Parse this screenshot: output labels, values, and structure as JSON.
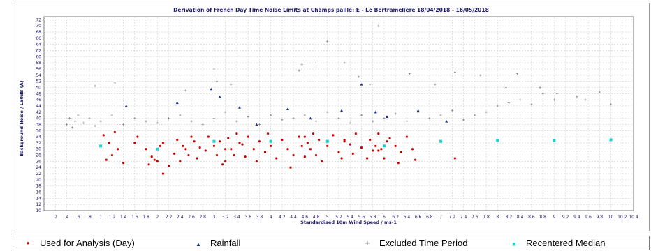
{
  "colors": {
    "used": "#c80000",
    "rainfall": "#1e2f8c",
    "excluded": "#8c8c8c",
    "median": "#19d2d2",
    "title": "#1c1c6e",
    "grid": "#cfcfcf"
  },
  "chart_data": {
    "type": "scatter",
    "title": "Derivation of French Day Time Noise Limits at Champs paille: E - Le Bertramelière 18/04/2018 - 16/05/2018",
    "xlabel": "Standardised 10m Wind Speed / ms-1",
    "ylabel": "Background Noise / L50dB (A)",
    "xlim": [
      0,
      10.4
    ],
    "ylim": [
      10,
      73
    ],
    "x_ticks": [
      ".2",
      ".4",
      ".6",
      ".8",
      "1",
      "1.2",
      "1.4",
      "1.6",
      "1.8",
      "2",
      "2.2",
      "2.4",
      "2.6",
      "2.8",
      "3",
      "3.2",
      "3.4",
      "3.6",
      "3.8",
      "4",
      "4.2",
      "4.4",
      "4.6",
      "4.8",
      "5",
      "5.2",
      "5.4",
      "5.6",
      "5.8",
      "6",
      "6.2",
      "6.4",
      "6.6",
      "6.8",
      "7",
      "7.2",
      "7.4",
      "7.6",
      "7.8",
      "8",
      "8.2",
      "8.4",
      "8.6",
      "8.8",
      "9",
      "9.2",
      "9.4",
      "9.6",
      "9.8",
      "10",
      "10.2",
      "10.4"
    ],
    "y_ticks": [
      "10",
      "12",
      "14",
      "16",
      "18",
      "20",
      "22",
      "24",
      "26",
      "28",
      "30",
      "32",
      "34",
      "36",
      "38",
      "40",
      "42",
      "44",
      "46",
      "48",
      "50",
      "52",
      "54",
      "56",
      "58",
      "60",
      "62",
      "64",
      "66",
      "68",
      "70",
      "72"
    ],
    "grid": true,
    "legend_position": "bottom",
    "series": [
      {
        "name": "Used for Analysis (Day)",
        "marker": "dot",
        "x": [
          1.05,
          1.1,
          1.15,
          1.2,
          1.25,
          1.3,
          1.4,
          1.6,
          1.65,
          1.8,
          1.85,
          1.9,
          2.0,
          2.05,
          2.1,
          2.2,
          2.3,
          2.35,
          2.4,
          2.45,
          2.5,
          2.6,
          2.65,
          2.7,
          2.75,
          2.85,
          2.9,
          3.0,
          3.05,
          3.1,
          3.15,
          3.2,
          3.25,
          3.3,
          3.35,
          3.4,
          3.5,
          3.55,
          3.6,
          3.7,
          3.75,
          3.8,
          3.9,
          3.95,
          4.0,
          4.1,
          4.2,
          4.3,
          4.35,
          4.4,
          4.5,
          4.55,
          4.6,
          4.65,
          4.7,
          4.75,
          4.8,
          4.85,
          4.9,
          5.0,
          5.1,
          5.2,
          5.25,
          5.3,
          5.4,
          5.45,
          5.5,
          5.6,
          5.7,
          5.75,
          5.8,
          5.85,
          5.9,
          5.95,
          6.0,
          6.05,
          6.1,
          6.2,
          6.25,
          6.4,
          6.5,
          6.55,
          7.25,
          2.1,
          3.2,
          4.6,
          5.3,
          5.9,
          6.3,
          1.95,
          2.55,
          3.45
        ],
        "y": [
          34.5,
          26.5,
          32,
          28,
          35.5,
          30,
          25.5,
          32,
          34,
          30,
          25,
          27.5,
          26,
          31,
          32,
          24.5,
          28.5,
          33,
          26,
          31,
          30,
          34,
          32.5,
          27,
          30.5,
          29.5,
          34,
          31,
          28,
          32.5,
          25,
          26,
          33.5,
          30,
          28,
          35,
          31.5,
          27.5,
          34,
          30,
          26,
          32.5,
          29,
          35,
          31,
          27,
          33,
          30,
          24,
          28,
          34,
          31,
          27.5,
          32,
          30,
          35,
          28,
          33,
          26,
          31,
          34.5,
          29,
          27,
          33,
          31.5,
          28.5,
          35,
          30.5,
          27,
          33,
          29.5,
          31,
          35,
          30,
          27,
          32.5,
          33.5,
          31,
          25.5,
          34,
          30,
          26.5,
          27,
          22,
          30,
          34,
          32.5,
          29.5,
          29,
          26.5,
          28,
          32
        ]
      },
      {
        "name": "Rainfall",
        "marker": "triangle",
        "x": [
          1.45,
          2.35,
          2.95,
          3.1,
          3.45,
          3.75,
          4.3,
          4.7,
          5.25,
          5.6,
          5.85,
          6.05,
          6.6,
          7.1
        ],
        "y": [
          44,
          45,
          49.5,
          47,
          43.5,
          38,
          43,
          40,
          42.5,
          51,
          42,
          40.5,
          42.5,
          39
        ],
        "name_note": ""
      },
      {
        "name": "Excluded Time Period",
        "marker": "plus",
        "x": [
          0.4,
          0.45,
          0.5,
          0.55,
          0.6,
          0.7,
          0.8,
          0.9,
          1.0,
          1.2,
          1.4,
          1.6,
          1.8,
          2.0,
          2.2,
          2.4,
          2.6,
          2.8,
          3.0,
          3.2,
          3.4,
          3.6,
          3.8,
          4.0,
          4.2,
          4.4,
          4.6,
          4.8,
          5.0,
          5.2,
          5.4,
          5.6,
          5.8,
          6.0,
          6.2,
          6.4,
          6.6,
          6.8,
          7.0,
          7.2,
          7.4,
          7.6,
          7.8,
          8.0,
          8.2,
          8.4,
          8.6,
          8.8,
          9.0,
          9.4,
          9.8,
          10.0,
          3.0,
          4.5,
          5.0,
          5.3,
          5.9,
          3.05,
          4.8,
          5.75,
          6.45,
          0.9,
          1.25,
          2.5,
          3.3,
          4.55,
          5.55,
          6.9,
          7.25,
          7.7,
          8.15,
          8.35,
          8.75,
          9.05,
          9.55
        ],
        "y": [
          38,
          40,
          37,
          39,
          41,
          38.5,
          40,
          37.5,
          39,
          41,
          38,
          40,
          39,
          38.5,
          40,
          41,
          39,
          38,
          40,
          42,
          39,
          40.5,
          38,
          41,
          39.5,
          40,
          41,
          39,
          42,
          40,
          38.5,
          41,
          39,
          40,
          41.5,
          39,
          42,
          40,
          41,
          42.5,
          39.5,
          41,
          42,
          44,
          45,
          46,
          44.5,
          48,
          46,
          47,
          48.5,
          44.5,
          56,
          55.5,
          65,
          58,
          70,
          52,
          57,
          51,
          54.5,
          50.5,
          51.5,
          49,
          51,
          57.5,
          53.5,
          51,
          55,
          54,
          50,
          54.5,
          50,
          48,
          46
        ]
      },
      {
        "name": "Recentered Median",
        "marker": "square",
        "x": [
          1.0,
          2.0,
          3.0,
          4.0,
          5.0,
          6.0,
          7.0,
          8.0,
          9.0,
          10.0
        ],
        "y": [
          31,
          30,
          32.5,
          32.5,
          32.5,
          31,
          32.5,
          32.8,
          32.8,
          33
        ]
      }
    ]
  },
  "legend": {
    "items": [
      {
        "label": "Used for Analysis (Day)",
        "glyph": "•"
      },
      {
        "label": "Rainfall",
        "glyph": "▲"
      },
      {
        "label": "Excluded Time Period",
        "glyph": "+"
      },
      {
        "label": "Recentered Median",
        "glyph": "■"
      }
    ]
  }
}
